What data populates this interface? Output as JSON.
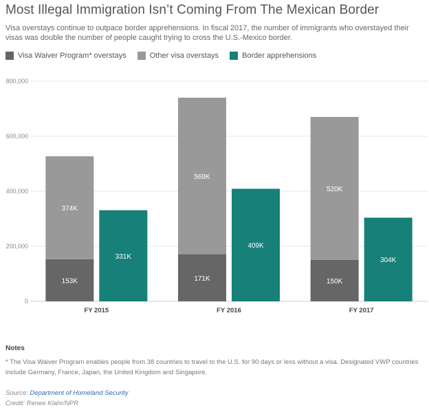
{
  "title": "Most Illegal Immigration Isn’t Coming From The Mexican Border",
  "subtitle": "Visa overstays continue to outpace border apprehensions. In fiscal 2017, the number of immigrants who overstayed their visas was double the number of people caught trying to cross the U.S.-Mexico border.",
  "legend": [
    {
      "label": "Visa Waiver Program* overstays",
      "color": "#666666"
    },
    {
      "label": "Other visa overstays",
      "color": "#999999"
    },
    {
      "label": "Border apprehensions",
      "color": "#178078"
    }
  ],
  "chart_data": {
    "type": "bar",
    "categories": [
      "FY 2015",
      "FY 2016",
      "FY 2017"
    ],
    "series": [
      {
        "name": "Visa Waiver Program* overstays",
        "values": [
          153000,
          171000,
          150000
        ],
        "labels": [
          "153K",
          "171K",
          "150K"
        ],
        "color": "#666666",
        "stack": "overstays"
      },
      {
        "name": "Other visa overstays",
        "values": [
          374000,
          569000,
          520000
        ],
        "labels": [
          "374K",
          "569K",
          "520K"
        ],
        "color": "#999999",
        "stack": "overstays"
      },
      {
        "name": "Border apprehensions",
        "values": [
          331000,
          409000,
          304000
        ],
        "labels": [
          "331K",
          "409K",
          "304K"
        ],
        "color": "#178078",
        "stack": "border"
      }
    ],
    "y_ticks": [
      0,
      200000,
      400000,
      600000,
      800000
    ],
    "y_tick_labels": [
      "0",
      "200,000",
      "400,000",
      "600,000",
      "800,000"
    ],
    "ylim": [
      0,
      800000
    ],
    "grid": true
  },
  "notes": {
    "heading": "Notes",
    "text": "* The Visa Waiver Program enables people from 38 countries to travel to the U.S. for 90 days or less without a visa. Designated VWP countries include Germany, France, Japan, the United Kingdom and Singapore."
  },
  "source": {
    "prefix": "Source:",
    "link": "Department of Homeland Security"
  },
  "credit": "Credit: Renee Klahr/NPR"
}
